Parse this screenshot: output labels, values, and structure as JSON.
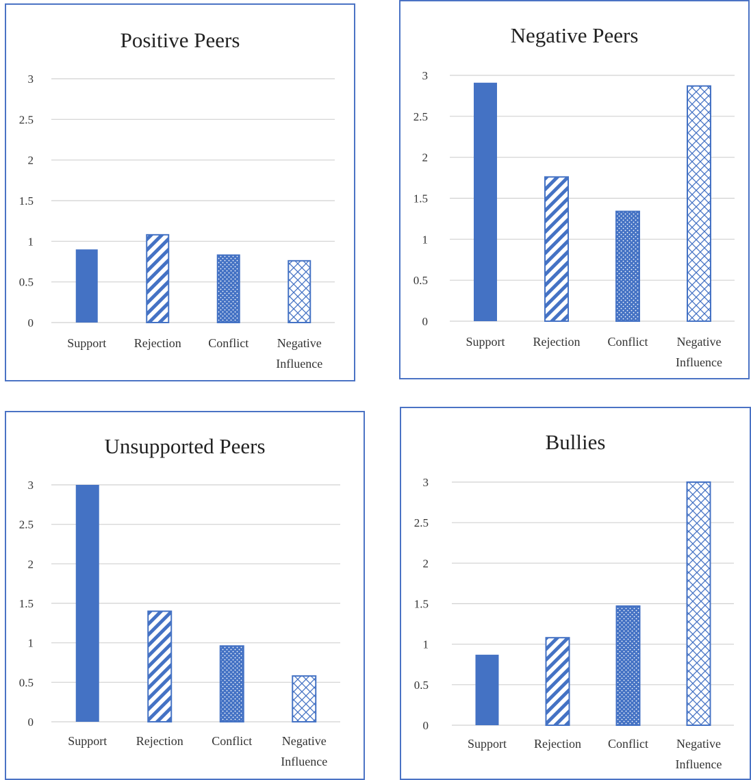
{
  "colors": {
    "bar": "#4472c4",
    "border": "#4a72c4",
    "grid": "#d0d0d0"
  },
  "chart_data": [
    {
      "type": "bar",
      "title": "Positive Peers",
      "categories": [
        "Support",
        "Rejection",
        "Conflict",
        "Negative Influence"
      ],
      "patterns": [
        "solid",
        "diagonal-stripes",
        "dots",
        "crosshatch"
      ],
      "values": [
        0.9,
        1.08,
        0.83,
        0.76
      ],
      "ylim": [
        0,
        3
      ],
      "yticks": [
        "0",
        "0.5",
        "1",
        "1.5",
        "2",
        "2.5",
        "3"
      ],
      "grid": true,
      "xlabel": "",
      "ylabel": ""
    },
    {
      "type": "bar",
      "title": "Negative Peers",
      "categories": [
        "Support",
        "Rejection",
        "Conflict",
        "Negative Influence"
      ],
      "patterns": [
        "solid",
        "diagonal-stripes",
        "dots",
        "crosshatch"
      ],
      "values": [
        2.91,
        1.76,
        1.34,
        2.87
      ],
      "ylim": [
        0,
        3
      ],
      "yticks": [
        "0",
        "0.5",
        "1",
        "1.5",
        "2",
        "2.5",
        "3"
      ],
      "grid": true,
      "xlabel": "",
      "ylabel": ""
    },
    {
      "type": "bar",
      "title": "Unsupported Peers",
      "categories": [
        "Support",
        "Rejection",
        "Conflict",
        "Negative Influence"
      ],
      "patterns": [
        "solid",
        "diagonal-stripes",
        "dots",
        "crosshatch"
      ],
      "values": [
        3.0,
        1.4,
        0.96,
        0.58
      ],
      "ylim": [
        0,
        3
      ],
      "yticks": [
        "0",
        "0.5",
        "1",
        "1.5",
        "2",
        "2.5",
        "3"
      ],
      "grid": true,
      "xlabel": "",
      "ylabel": ""
    },
    {
      "type": "bar",
      "title": "Bullies",
      "categories": [
        "Support",
        "Rejection",
        "Conflict",
        "Negative Influence"
      ],
      "patterns": [
        "solid",
        "diagonal-stripes",
        "dots",
        "crosshatch"
      ],
      "values": [
        0.87,
        1.08,
        1.47,
        3.0
      ],
      "ylim": [
        0,
        3
      ],
      "yticks": [
        "0",
        "0.5",
        "1",
        "1.5",
        "2",
        "2.5",
        "3"
      ],
      "grid": true,
      "xlabel": "",
      "ylabel": ""
    }
  ]
}
